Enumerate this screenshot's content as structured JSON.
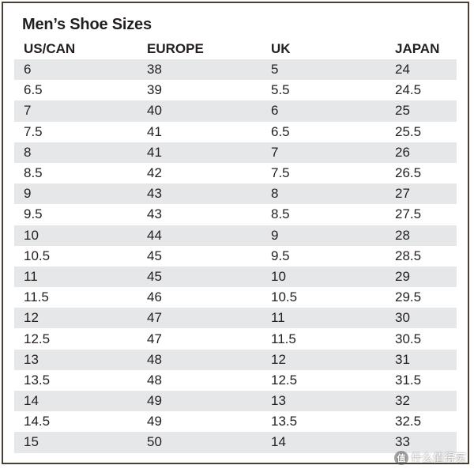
{
  "title": "Men’s Shoe Sizes",
  "columns": [
    "US/CAN",
    "EUROPE",
    "UK",
    "JAPAN"
  ],
  "rows": [
    [
      "6",
      "38",
      "5",
      "24"
    ],
    [
      "6.5",
      "39",
      "5.5",
      "24.5"
    ],
    [
      "7",
      "40",
      "6",
      "25"
    ],
    [
      "7.5",
      "41",
      "6.5",
      "25.5"
    ],
    [
      "8",
      "41",
      "7",
      "26"
    ],
    [
      "8.5",
      "42",
      "7.5",
      "26.5"
    ],
    [
      "9",
      "43",
      "8",
      "27"
    ],
    [
      "9.5",
      "43",
      "8.5",
      "27.5"
    ],
    [
      "10",
      "44",
      "9",
      "28"
    ],
    [
      "10.5",
      "45",
      "9.5",
      "28.5"
    ],
    [
      "11",
      "45",
      "10",
      "29"
    ],
    [
      "11.5",
      "46",
      "10.5",
      "29.5"
    ],
    [
      "12",
      "47",
      "11",
      "30"
    ],
    [
      "12.5",
      "47",
      "11.5",
      "30.5"
    ],
    [
      "13",
      "48",
      "12",
      "31"
    ],
    [
      "13.5",
      "48",
      "12.5",
      "31.5"
    ],
    [
      "14",
      "49",
      "13",
      "32"
    ],
    [
      "14.5",
      "49",
      "13.5",
      "32.5"
    ],
    [
      "15",
      "50",
      "14",
      "33"
    ]
  ],
  "watermark": {
    "logo": "值",
    "text": "什么值得买"
  },
  "colors": {
    "border": "#4a3f35",
    "stripe": "#e6e7e8",
    "text": "#231f20"
  }
}
